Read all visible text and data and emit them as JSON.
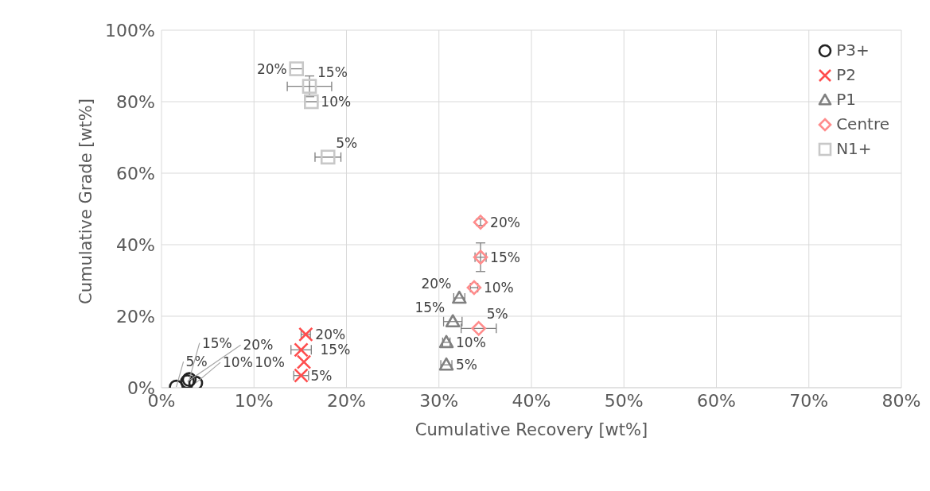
{
  "chart_data": {
    "type": "scatter",
    "xlabel": "Cumulative Recovery [wt%]",
    "ylabel": "Cumulative Grade [wt%]",
    "xlim": [
      0,
      80
    ],
    "ylim": [
      0,
      100
    ],
    "xticks": [
      {
        "value": 0,
        "label": "0%"
      },
      {
        "value": 10,
        "label": "10%"
      },
      {
        "value": 20,
        "label": "20%"
      },
      {
        "value": 30,
        "label": "30%"
      },
      {
        "value": 40,
        "label": "40%"
      },
      {
        "value": 50,
        "label": "50%"
      },
      {
        "value": 60,
        "label": "60%"
      },
      {
        "value": 70,
        "label": "70%"
      },
      {
        "value": 80,
        "label": "80%"
      }
    ],
    "yticks": [
      {
        "value": 0,
        "label": "0%"
      },
      {
        "value": 20,
        "label": "20%"
      },
      {
        "value": 40,
        "label": "40%"
      },
      {
        "value": 60,
        "label": "60%"
      },
      {
        "value": 80,
        "label": "80%"
      },
      {
        "value": 100,
        "label": "100%"
      }
    ],
    "grid": true,
    "legend": "top right",
    "series": [
      {
        "name": "P3+",
        "color": "#222222",
        "marker": "circle",
        "x": [
          1.6,
          3.7,
          3.0,
          2.8
        ],
        "values": [
          0.2,
          1.3,
          2.3,
          1.7
        ]
      },
      {
        "name": "P2",
        "color": "#ff4d4d",
        "marker": "cross",
        "x": [
          15.1,
          15.4,
          15.1,
          15.6
        ],
        "values": [
          3.4,
          7.2,
          10.6,
          14.9
        ],
        "xerrors": [
          0.8,
          null,
          1.1,
          0.5
        ]
      },
      {
        "name": "P1",
        "color": "#808080",
        "marker": "triangle",
        "x": [
          30.8,
          30.8,
          31.5,
          32.2
        ],
        "values": [
          6.4,
          12.7,
          18.5,
          25.1
        ],
        "xerrors": [
          0.6,
          0.4,
          1.0,
          0.6
        ]
      },
      {
        "name": "Centre",
        "color": "#ff8c8c",
        "marker": "diamond",
        "x": [
          34.3,
          33.8,
          34.5,
          34.5
        ],
        "values": [
          16.6,
          28.0,
          36.5,
          46.3
        ],
        "xerrors": [
          1.9,
          0.4,
          0.6,
          null
        ],
        "errors": [
          null,
          null,
          4.0,
          0.9
        ]
      },
      {
        "name": "N1+",
        "color": "#c8c8c8",
        "marker": "square",
        "x": [
          18.0,
          16.2,
          16.0,
          14.6
        ],
        "values": [
          64.5,
          80.0,
          84.3,
          89.2
        ],
        "xerrors": [
          1.4,
          0.7,
          2.4,
          0.7
        ],
        "errors": [
          null,
          null,
          2.9,
          null
        ]
      }
    ],
    "annotations": [
      {
        "text": "5%",
        "x": 1.6,
        "y": 0.2
      },
      {
        "text": "10%",
        "x": 3.7,
        "y": 1.3
      },
      {
        "text": "15%",
        "x": 3.0,
        "y": 2.3
      },
      {
        "text": "20%",
        "x": 2.8,
        "y": 1.7
      },
      {
        "text": "5%",
        "x": 15.1,
        "y": 3.4
      },
      {
        "text": "10%",
        "x": 15.4,
        "y": 7.2
      },
      {
        "text": "15%",
        "x": 15.1,
        "y": 10.6
      },
      {
        "text": "20%",
        "x": 15.6,
        "y": 14.9
      },
      {
        "text": "5%",
        "x": 30.8,
        "y": 6.4
      },
      {
        "text": "10%",
        "x": 30.8,
        "y": 12.7
      },
      {
        "text": "15%",
        "x": 31.5,
        "y": 18.5
      },
      {
        "text": "20%",
        "x": 32.2,
        "y": 25.1
      },
      {
        "text": "5%",
        "x": 34.3,
        "y": 16.6
      },
      {
        "text": "10%",
        "x": 33.8,
        "y": 28.0
      },
      {
        "text": "15%",
        "x": 34.5,
        "y": 36.5
      },
      {
        "text": "20%",
        "x": 34.5,
        "y": 46.3
      },
      {
        "text": "5%",
        "x": 18.0,
        "y": 64.5
      },
      {
        "text": "10%",
        "x": 16.2,
        "y": 80.0
      },
      {
        "text": "15%",
        "x": 16.0,
        "y": 84.3
      },
      {
        "text": "20%",
        "x": 14.6,
        "y": 89.2
      }
    ]
  }
}
